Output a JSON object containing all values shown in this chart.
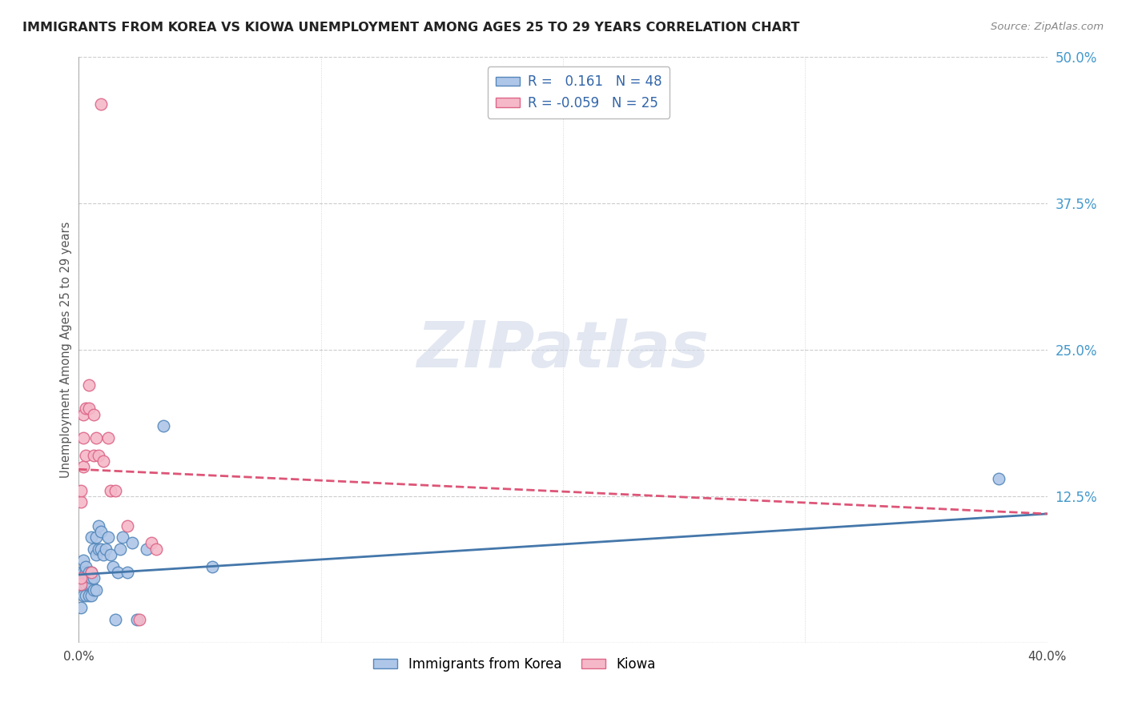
{
  "title": "IMMIGRANTS FROM KOREA VS KIOWA UNEMPLOYMENT AMONG AGES 25 TO 29 YEARS CORRELATION CHART",
  "source": "Source: ZipAtlas.com",
  "ylabel": "Unemployment Among Ages 25 to 29 years",
  "xlim": [
    0.0,
    0.4
  ],
  "ylim": [
    0.0,
    0.5
  ],
  "xtick_vals": [
    0.0,
    0.1,
    0.2,
    0.3,
    0.4
  ],
  "xtick_labels": [
    "0.0%",
    "",
    "",
    "",
    "40.0%"
  ],
  "yticks_right": [
    0.0,
    0.125,
    0.25,
    0.375,
    0.5
  ],
  "ytick_right_labels": [
    "",
    "12.5%",
    "25.0%",
    "37.5%",
    "50.0%"
  ],
  "korea_R": "0.161",
  "korea_N": "48",
  "kiowa_R": "-0.059",
  "kiowa_N": "25",
  "korea_color": "#aec6e8",
  "kiowa_color": "#f5b8c8",
  "korea_edge_color": "#5588bb",
  "kiowa_edge_color": "#dd6688",
  "korea_line_color": "#4477aa",
  "kiowa_line_color": "#dd5577",
  "legend_korea": "Immigrants from Korea",
  "legend_kiowa": "Kiowa",
  "watermark": "ZIPatlas",
  "background_color": "#ffffff",
  "grid_color": "#cccccc",
  "title_color": "#222222",
  "right_label_color": "#4499cc",
  "korea_scatter_x": [
    0.001,
    0.001,
    0.001,
    0.002,
    0.002,
    0.002,
    0.002,
    0.002,
    0.003,
    0.003,
    0.003,
    0.003,
    0.003,
    0.004,
    0.004,
    0.004,
    0.004,
    0.005,
    0.005,
    0.005,
    0.005,
    0.005,
    0.006,
    0.006,
    0.006,
    0.007,
    0.007,
    0.007,
    0.008,
    0.008,
    0.009,
    0.009,
    0.01,
    0.011,
    0.012,
    0.013,
    0.014,
    0.015,
    0.016,
    0.017,
    0.018,
    0.02,
    0.022,
    0.024,
    0.028,
    0.035,
    0.055,
    0.38
  ],
  "korea_scatter_y": [
    0.03,
    0.05,
    0.06,
    0.04,
    0.05,
    0.055,
    0.06,
    0.07,
    0.04,
    0.05,
    0.055,
    0.06,
    0.065,
    0.04,
    0.05,
    0.055,
    0.06,
    0.04,
    0.05,
    0.055,
    0.06,
    0.09,
    0.045,
    0.055,
    0.08,
    0.045,
    0.075,
    0.09,
    0.08,
    0.1,
    0.08,
    0.095,
    0.075,
    0.08,
    0.09,
    0.075,
    0.065,
    0.02,
    0.06,
    0.08,
    0.09,
    0.06,
    0.085,
    0.02,
    0.08,
    0.185,
    0.065,
    0.14
  ],
  "kiowa_scatter_x": [
    0.001,
    0.001,
    0.001,
    0.001,
    0.002,
    0.002,
    0.002,
    0.003,
    0.003,
    0.004,
    0.004,
    0.005,
    0.006,
    0.006,
    0.007,
    0.008,
    0.009,
    0.01,
    0.012,
    0.013,
    0.015,
    0.02,
    0.025,
    0.03,
    0.032
  ],
  "kiowa_scatter_y": [
    0.05,
    0.055,
    0.12,
    0.13,
    0.15,
    0.175,
    0.195,
    0.16,
    0.2,
    0.2,
    0.22,
    0.06,
    0.16,
    0.195,
    0.175,
    0.16,
    0.46,
    0.155,
    0.175,
    0.13,
    0.13,
    0.1,
    0.02,
    0.085,
    0.08
  ],
  "korea_trend_x": [
    0.0,
    0.4
  ],
  "korea_trend_y": [
    0.058,
    0.11
  ],
  "kiowa_trend_x": [
    0.0,
    0.4
  ],
  "kiowa_trend_y": [
    0.148,
    0.11
  ]
}
